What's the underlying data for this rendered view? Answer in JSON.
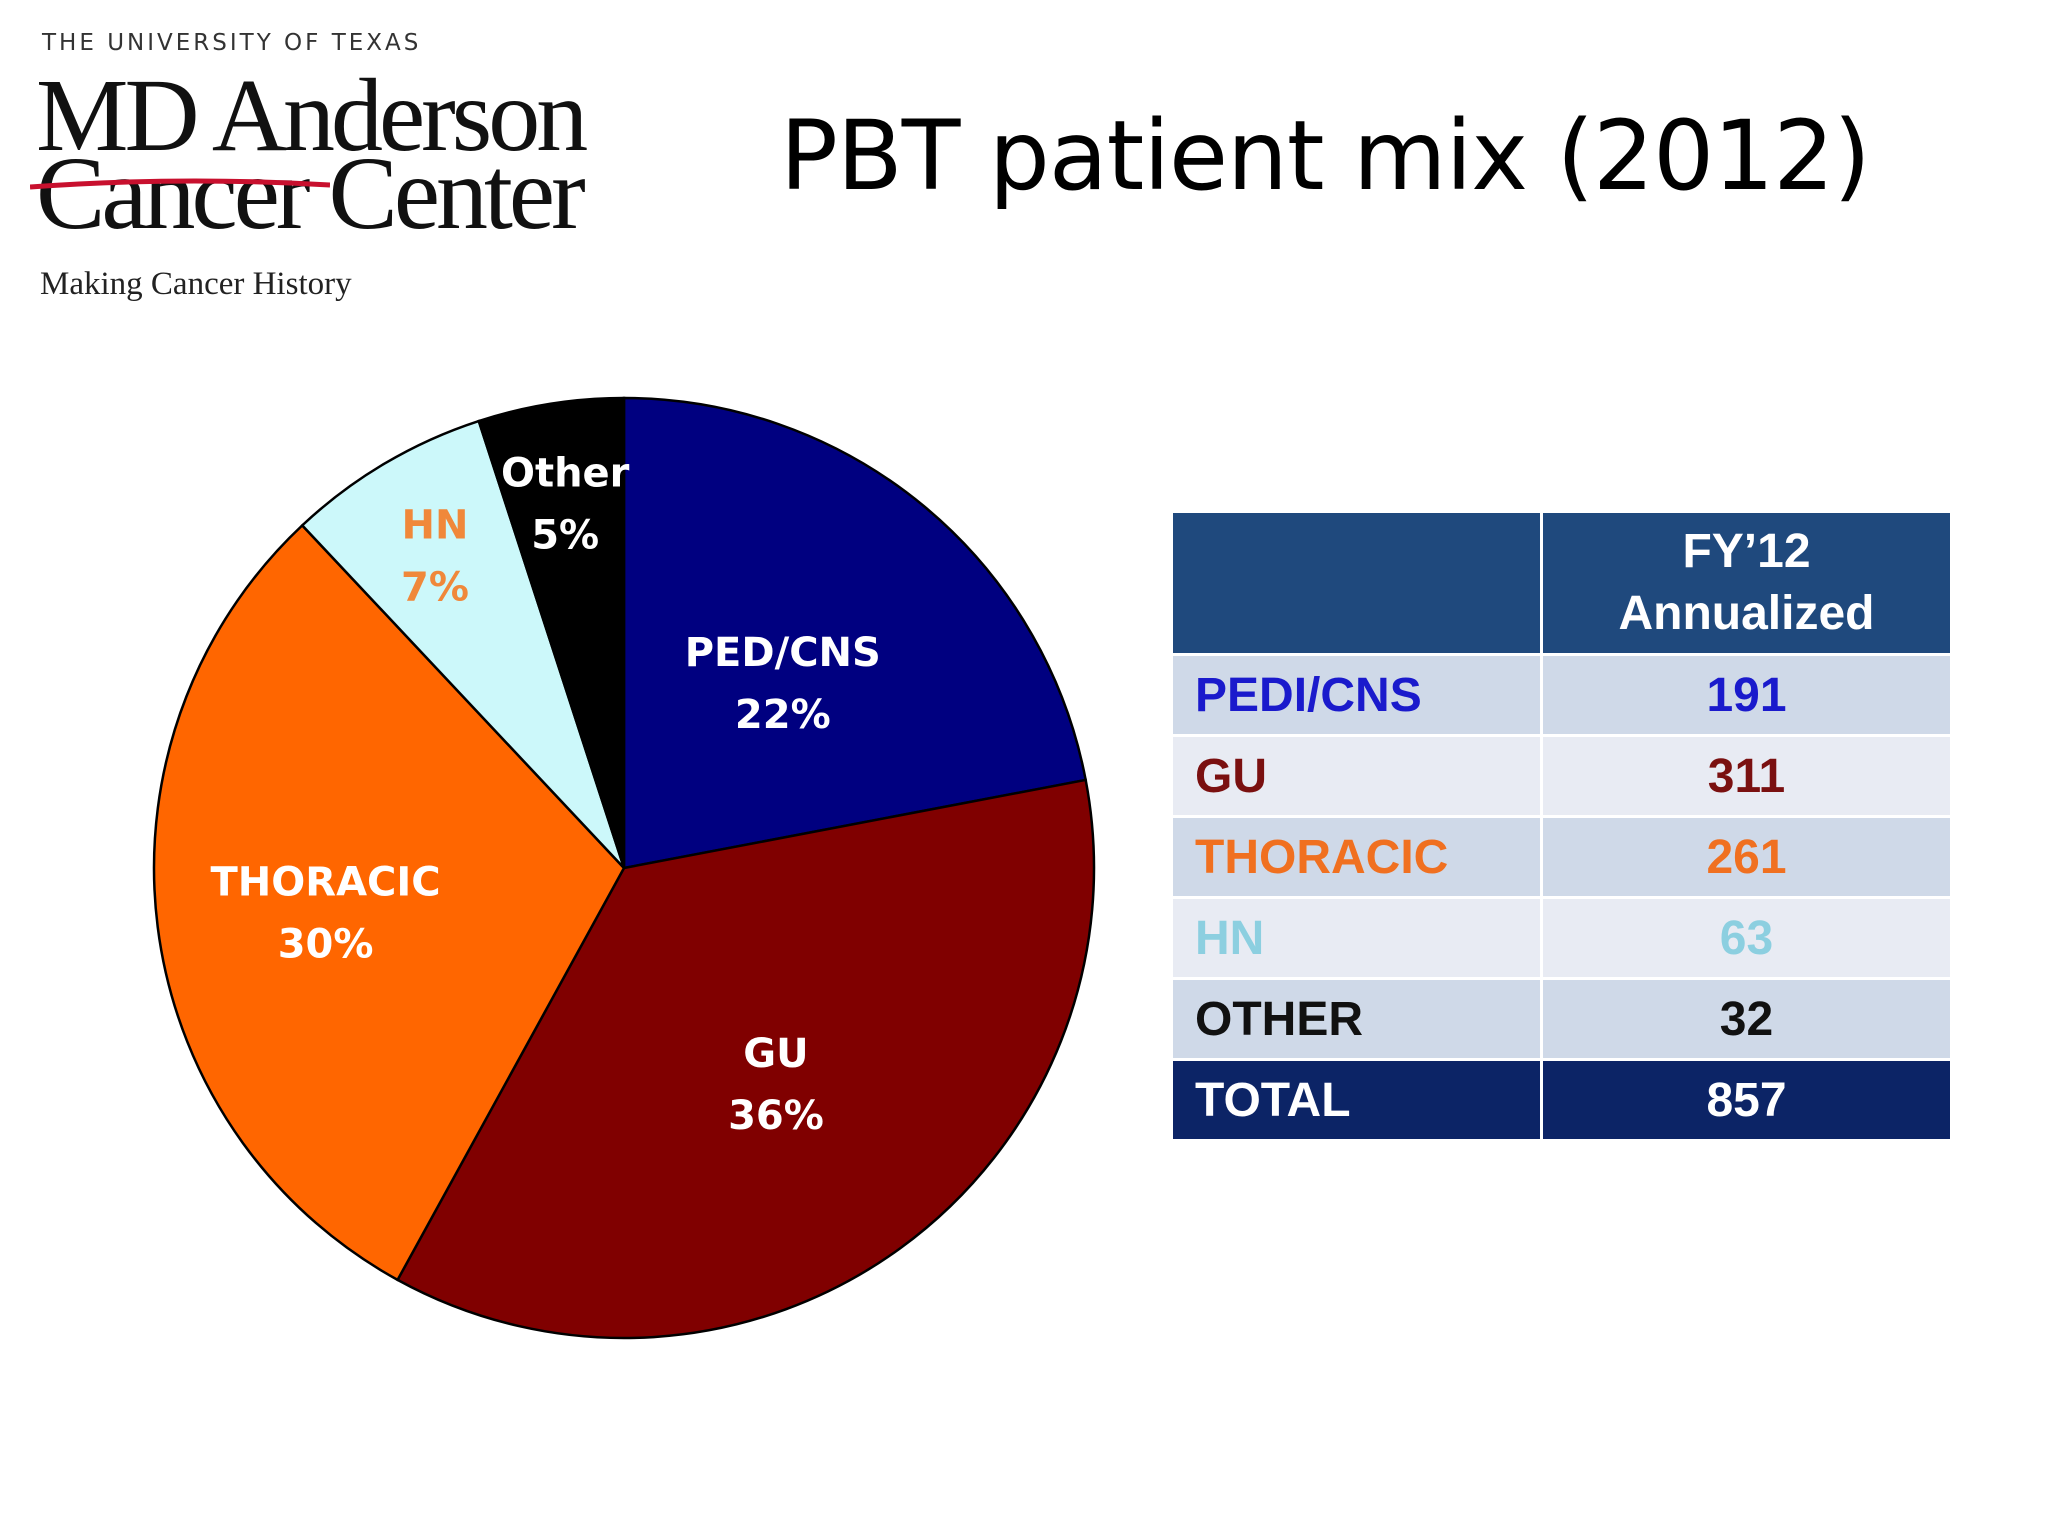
{
  "logo": {
    "university": "THE UNIVERSITY OF TEXAS",
    "line1": "MD Anderson",
    "line2": "Cancer Center",
    "tagline": "Making Cancer History"
  },
  "title": "PBT patient mix (2012)",
  "chart_data": {
    "type": "pie",
    "title": "PBT patient mix (2012)",
    "slices": [
      {
        "name": "PED/CNS",
        "value": 22,
        "label": "22%",
        "color": "#000080",
        "text_color": "#ffffff"
      },
      {
        "name": "GU",
        "value": 36,
        "label": "36%",
        "color": "#800000",
        "text_color": "#ffffff"
      },
      {
        "name": "THORACIC",
        "value": 30,
        "label": "30%",
        "color": "#ff6600",
        "text_color": "#ffffff"
      },
      {
        "name": "HN",
        "value": 7,
        "label": "7%",
        "color": "#ccf8fa",
        "text_color": "#f0883a"
      },
      {
        "name": "Other",
        "value": 5,
        "label": "5%",
        "color": "#000000",
        "text_color": "#ffffff"
      }
    ]
  },
  "table": {
    "header_col1": "",
    "header_col2_line1": "FY’12",
    "header_col2_line2": "Annualized",
    "rows": [
      {
        "label": "PEDI/CNS",
        "value": "191",
        "color": "#1a1acc"
      },
      {
        "label": "GU",
        "value": "311",
        "color": "#7a1010"
      },
      {
        "label": "THORACIC",
        "value": "261",
        "color": "#f07020"
      },
      {
        "label": "HN",
        "value": "63",
        "color": "#8ccfe0"
      },
      {
        "label": "OTHER",
        "value": "32",
        "color": "#111111"
      }
    ],
    "total": {
      "label": "TOTAL",
      "value": "857"
    }
  }
}
